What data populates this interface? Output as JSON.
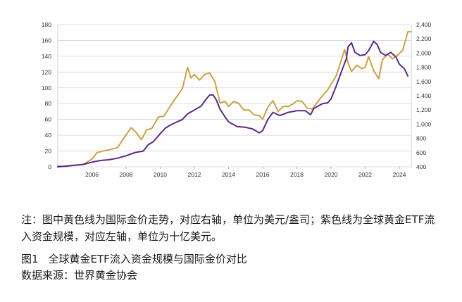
{
  "chart_data": {
    "type": "line",
    "title": "",
    "xlabel": "",
    "ylabel_left": "",
    "ylabel_right": "",
    "x_ticks": [
      "2006",
      "2008",
      "2010",
      "2012",
      "2014",
      "2016",
      "2018",
      "2020",
      "2022",
      "2024"
    ],
    "y_left": {
      "ticks": [
        "0",
        "20",
        "40",
        "60",
        "80",
        "100",
        "120",
        "140",
        "160",
        "180"
      ],
      "range": [
        0,
        180
      ]
    },
    "y_right": {
      "ticks": [
        "400",
        "600",
        "800",
        "1,000",
        "1,200",
        "1,400",
        "1,600",
        "1,800",
        "2,000",
        "2,200",
        "2,400"
      ],
      "range": [
        400,
        2400
      ]
    },
    "x_range": [
      2004.0,
      2024.7
    ],
    "grid": "horizontal",
    "series": [
      {
        "key": "etf",
        "axis": "left",
        "color": "#5b2a83",
        "points": [
          [
            2004.0,
            0
          ],
          [
            2004.5,
            1
          ],
          [
            2005.0,
            2
          ],
          [
            2005.5,
            3
          ],
          [
            2006.0,
            6
          ],
          [
            2006.5,
            8
          ],
          [
            2007.0,
            9
          ],
          [
            2007.5,
            11
          ],
          [
            2008.0,
            14
          ],
          [
            2008.5,
            18
          ],
          [
            2009.0,
            20
          ],
          [
            2009.3,
            28
          ],
          [
            2009.6,
            32
          ],
          [
            2010.0,
            42
          ],
          [
            2010.3,
            49
          ],
          [
            2010.6,
            53
          ],
          [
            2011.0,
            57
          ],
          [
            2011.3,
            60
          ],
          [
            2011.6,
            67
          ],
          [
            2012.0,
            72
          ],
          [
            2012.4,
            77
          ],
          [
            2012.7,
            86
          ],
          [
            2012.9,
            91
          ],
          [
            2013.1,
            91
          ],
          [
            2013.3,
            84
          ],
          [
            2013.5,
            73
          ],
          [
            2013.8,
            63
          ],
          [
            2014.0,
            57
          ],
          [
            2014.5,
            51
          ],
          [
            2015.0,
            50
          ],
          [
            2015.4,
            48
          ],
          [
            2015.8,
            43
          ],
          [
            2016.0,
            46
          ],
          [
            2016.3,
            60
          ],
          [
            2016.6,
            69
          ],
          [
            2017.0,
            65
          ],
          [
            2017.5,
            69
          ],
          [
            2018.0,
            71
          ],
          [
            2018.5,
            71
          ],
          [
            2018.8,
            66
          ],
          [
            2019.0,
            74
          ],
          [
            2019.5,
            80
          ],
          [
            2019.8,
            81
          ],
          [
            2020.0,
            86
          ],
          [
            2020.3,
            102
          ],
          [
            2020.6,
            120
          ],
          [
            2020.9,
            137
          ],
          [
            2021.0,
            152
          ],
          [
            2021.2,
            157
          ],
          [
            2021.4,
            145
          ],
          [
            2021.7,
            141
          ],
          [
            2022.0,
            142
          ],
          [
            2022.2,
            147
          ],
          [
            2022.5,
            159
          ],
          [
            2022.7,
            155
          ],
          [
            2022.9,
            145
          ],
          [
            2023.2,
            141
          ],
          [
            2023.5,
            145
          ],
          [
            2023.8,
            139
          ],
          [
            2024.0,
            130
          ],
          [
            2024.3,
            124
          ],
          [
            2024.5,
            115
          ]
        ]
      },
      {
        "key": "gold",
        "axis": "right",
        "color": "#c8a24a",
        "points": [
          [
            2004.0,
            410
          ],
          [
            2004.5,
            405
          ],
          [
            2005.0,
            425
          ],
          [
            2005.5,
            435
          ],
          [
            2006.0,
            510
          ],
          [
            2006.3,
            600
          ],
          [
            2006.6,
            620
          ],
          [
            2007.0,
            640
          ],
          [
            2007.5,
            670
          ],
          [
            2008.0,
            850
          ],
          [
            2008.3,
            950
          ],
          [
            2008.6,
            880
          ],
          [
            2008.9,
            780
          ],
          [
            2009.2,
            920
          ],
          [
            2009.5,
            940
          ],
          [
            2009.9,
            1100
          ],
          [
            2010.2,
            1110
          ],
          [
            2010.5,
            1220
          ],
          [
            2010.8,
            1330
          ],
          [
            2011.0,
            1400
          ],
          [
            2011.3,
            1500
          ],
          [
            2011.6,
            1800
          ],
          [
            2011.8,
            1650
          ],
          [
            2012.0,
            1700
          ],
          [
            2012.3,
            1620
          ],
          [
            2012.6,
            1700
          ],
          [
            2012.9,
            1720
          ],
          [
            2013.2,
            1600
          ],
          [
            2013.5,
            1300
          ],
          [
            2013.8,
            1320
          ],
          [
            2014.0,
            1250
          ],
          [
            2014.3,
            1320
          ],
          [
            2014.6,
            1290
          ],
          [
            2014.9,
            1200
          ],
          [
            2015.2,
            1200
          ],
          [
            2015.5,
            1130
          ],
          [
            2015.8,
            1120
          ],
          [
            2016.0,
            1070
          ],
          [
            2016.3,
            1240
          ],
          [
            2016.6,
            1330
          ],
          [
            2016.9,
            1180
          ],
          [
            2017.2,
            1250
          ],
          [
            2017.5,
            1250
          ],
          [
            2017.8,
            1290
          ],
          [
            2018.0,
            1330
          ],
          [
            2018.3,
            1320
          ],
          [
            2018.6,
            1230
          ],
          [
            2018.9,
            1210
          ],
          [
            2019.2,
            1310
          ],
          [
            2019.5,
            1400
          ],
          [
            2019.8,
            1480
          ],
          [
            2020.0,
            1560
          ],
          [
            2020.3,
            1680
          ],
          [
            2020.6,
            1900
          ],
          [
            2020.8,
            2050
          ],
          [
            2021.0,
            1860
          ],
          [
            2021.2,
            1740
          ],
          [
            2021.5,
            1830
          ],
          [
            2021.8,
            1780
          ],
          [
            2022.0,
            1800
          ],
          [
            2022.2,
            1950
          ],
          [
            2022.5,
            1750
          ],
          [
            2022.8,
            1640
          ],
          [
            2023.0,
            1900
          ],
          [
            2023.3,
            1990
          ],
          [
            2023.6,
            1920
          ],
          [
            2023.9,
            1970
          ],
          [
            2024.2,
            2040
          ],
          [
            2024.5,
            2300
          ],
          [
            2024.7,
            2300
          ]
        ]
      }
    ]
  },
  "note": "注：图中黄色线为国际金价走势，对应右轴，单位为美元/盎司；紫色线为全球黄金ETF流入资金规模，对应左轴，单位为十亿美元。",
  "figure_number": "图1",
  "figure_title": "全球黄金ETF流入资金规模与国际金价对比",
  "source": "数据来源：世界黄金协会"
}
